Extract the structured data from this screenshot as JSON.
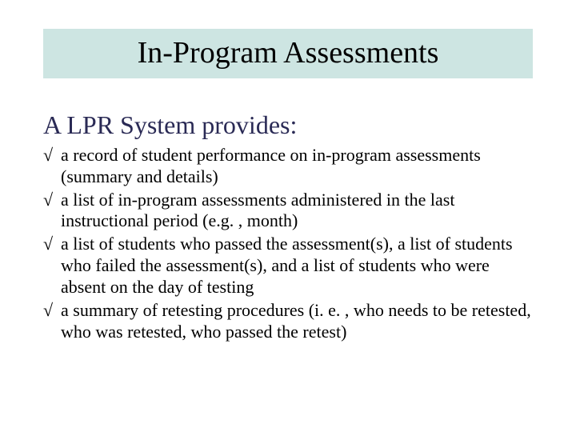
{
  "slide": {
    "title": "In-Program Assessments",
    "subtitle": "A LPR System provides:",
    "bullet_marker": "√",
    "bullets": [
      "a record of student performance on in-program assessments (summary and details)",
      " a list of in-program assessments administered in the last instructional period (e.g. , month)",
      " a list of students who passed the assessment(s), a list of students who failed the assessment(s), and a list of students who were absent on the day of testing",
      "a summary of retesting procedures (i. e. , who needs to be retested, who was retested, who passed the retest)"
    ]
  },
  "style": {
    "title_band_bg": "#cde5e2",
    "title_fontsize": 38,
    "subtitle_color": "#2a2a55",
    "subtitle_fontsize": 32,
    "body_fontsize": 22,
    "background_color": "#ffffff",
    "text_color": "#000000",
    "font_family": "Times New Roman"
  }
}
